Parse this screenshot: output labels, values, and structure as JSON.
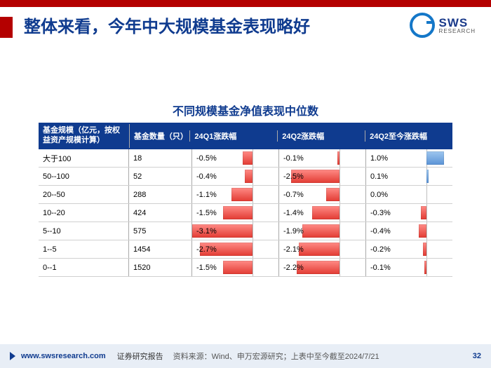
{
  "header": {
    "title": "整体来看，今年中大规模基金表现略好",
    "logo_main": "SWS",
    "logo_sub": "RESEARCH"
  },
  "chart": {
    "title": "不同规模基金净值表现中位数",
    "columns": [
      "基金规模（亿元，按权益资产规模计算）",
      "基金数量（只）",
      "24Q1涨跌幅",
      "24Q2涨跌幅",
      "24Q2至今涨跌幅"
    ],
    "neg_color": "#e23b33",
    "pos_color": "#5a93d6",
    "axis_position_pct": 70,
    "neg_full_scale_pct": -3.1,
    "pos_full_scale_pct": 1.5,
    "rows": [
      {
        "scale": "大于100",
        "count": 18,
        "q1": -0.5,
        "q2": -0.1,
        "since": 1.0
      },
      {
        "scale": "50--100",
        "count": 52,
        "q1": -0.4,
        "q2": -2.5,
        "since": 0.1
      },
      {
        "scale": "20--50",
        "count": 288,
        "q1": -1.1,
        "q2": -0.7,
        "since": 0.0
      },
      {
        "scale": "10--20",
        "count": 424,
        "q1": -1.5,
        "q2": -1.4,
        "since": -0.3
      },
      {
        "scale": "5--10",
        "count": 575,
        "q1": -3.1,
        "q2": -1.9,
        "since": -0.4
      },
      {
        "scale": "1--5",
        "count": 1454,
        "q1": -2.7,
        "q2": -2.1,
        "since": -0.2
      },
      {
        "scale": "0--1",
        "count": 1520,
        "q1": -1.5,
        "q2": -2.2,
        "since": -0.1
      }
    ]
  },
  "footer": {
    "url": "www.swsresearch.com",
    "label": "证券研究报告",
    "source": "资料来源：Wind、申万宏源研究；上表中至今截至2024/7/21",
    "page": "32"
  },
  "style": {
    "brand_red": "#b40000",
    "brand_blue": "#0f3b8f",
    "header_bg": "#0f3b8f",
    "row_border": "#d0d0d0",
    "footer_bg": "#e8eef6",
    "title_fontsize_pt": 18,
    "chart_title_fontsize_pt": 12,
    "table_fontsize_pt": 8
  }
}
